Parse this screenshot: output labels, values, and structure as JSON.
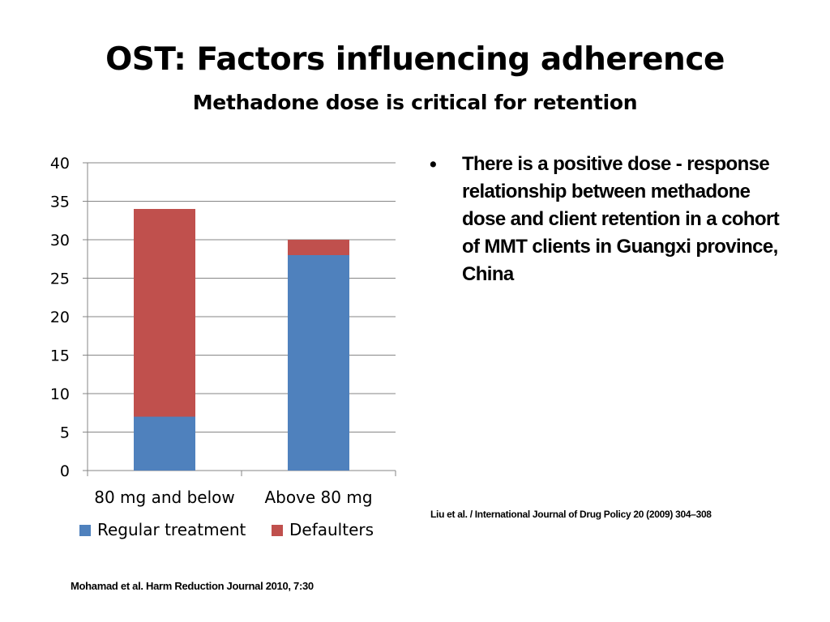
{
  "slide": {
    "title": "OST: Factors influencing adherence",
    "subtitle": "Methadone dose is critical for retention",
    "bullet": "There is a positive dose - response relationship between methadone dose and client retention in a cohort of MMT clients in Guangxi province, China",
    "ref_right": "Liu et al. / International Journal of Drug Policy 20 (2009) 304–308",
    "ref_left": "Mohamad et al. Harm Reduction Journal 2010, 7:30"
  },
  "chart_data": {
    "type": "bar",
    "stacked": true,
    "categories": [
      "80 mg and below",
      "Above 80 mg"
    ],
    "series": [
      {
        "name": "Regular treatment",
        "values": [
          7,
          28
        ],
        "color": "#4F81BD"
      },
      {
        "name": "Defaulters",
        "values": [
          27,
          2
        ],
        "color": "#C0504D"
      }
    ],
    "ylim": [
      0,
      40
    ],
    "yticks": [
      0,
      5,
      10,
      15,
      20,
      25,
      30,
      35,
      40
    ],
    "grid": true,
    "legend": "bottom"
  }
}
